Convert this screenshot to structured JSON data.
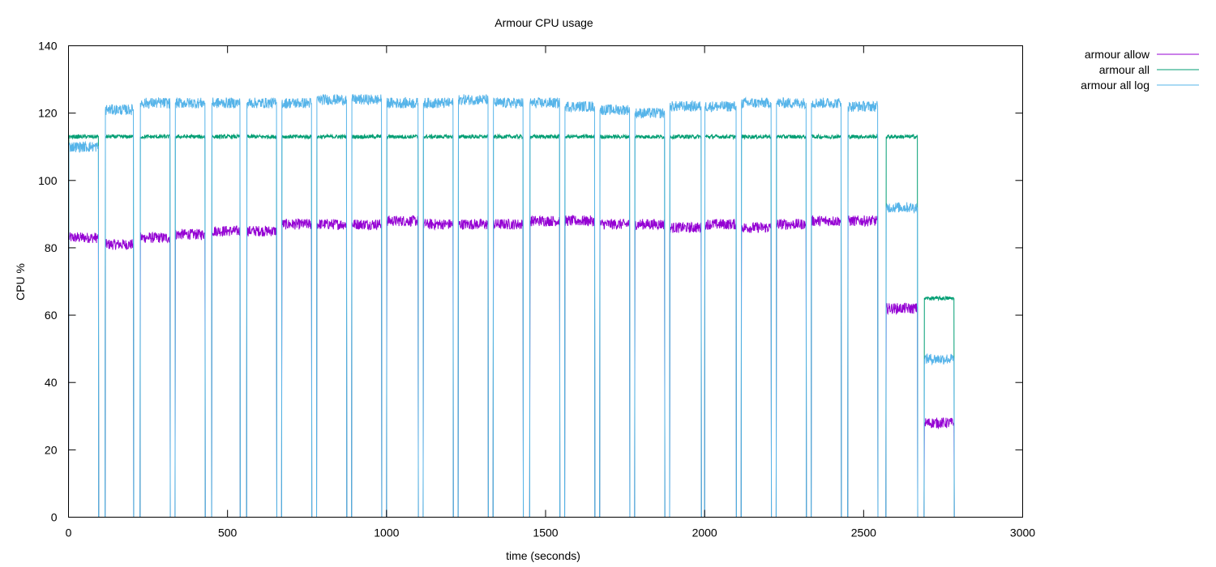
{
  "chart_data": {
    "type": "line",
    "title": "Armour CPU usage",
    "xlabel": "time (seconds)",
    "ylabel": "CPU %",
    "xlim": [
      0,
      3000
    ],
    "ylim": [
      0,
      140
    ],
    "xticks": [
      0,
      500,
      1000,
      1500,
      2000,
      2500,
      3000
    ],
    "yticks": [
      0,
      20,
      40,
      60,
      80,
      100,
      120,
      140
    ],
    "grid": false,
    "legend_position": "top-right, outside plot",
    "series": [
      {
        "name": "armour allow",
        "color": "#9400d3",
        "blocks": [
          [
            0,
            95,
            83
          ],
          [
            115,
            205,
            81
          ],
          [
            225,
            320,
            83
          ],
          [
            335,
            430,
            84
          ],
          [
            450,
            540,
            85
          ],
          [
            560,
            655,
            85
          ],
          [
            670,
            765,
            87
          ],
          [
            780,
            875,
            87
          ],
          [
            890,
            985,
            87
          ],
          [
            1000,
            1100,
            88
          ],
          [
            1115,
            1210,
            87
          ],
          [
            1225,
            1320,
            87
          ],
          [
            1335,
            1430,
            87
          ],
          [
            1450,
            1545,
            88
          ],
          [
            1560,
            1655,
            88
          ],
          [
            1670,
            1765,
            87
          ],
          [
            1780,
            1875,
            87
          ],
          [
            1890,
            1990,
            86
          ],
          [
            2000,
            2100,
            87
          ],
          [
            2115,
            2210,
            86
          ],
          [
            2225,
            2320,
            87
          ],
          [
            2335,
            2430,
            88
          ],
          [
            2450,
            2545,
            88
          ],
          [
            2570,
            2670,
            62
          ],
          [
            2690,
            2785,
            28
          ]
        ]
      },
      {
        "name": "armour all",
        "color": "#009e73",
        "blocks": [
          [
            0,
            95,
            113
          ],
          [
            115,
            205,
            113
          ],
          [
            225,
            320,
            113
          ],
          [
            335,
            430,
            113
          ],
          [
            450,
            540,
            113
          ],
          [
            560,
            655,
            113
          ],
          [
            670,
            765,
            113
          ],
          [
            780,
            875,
            113
          ],
          [
            890,
            985,
            113
          ],
          [
            1000,
            1100,
            113
          ],
          [
            1115,
            1210,
            113
          ],
          [
            1225,
            1320,
            113
          ],
          [
            1335,
            1430,
            113
          ],
          [
            1450,
            1545,
            113
          ],
          [
            1560,
            1655,
            113
          ],
          [
            1670,
            1765,
            113
          ],
          [
            1780,
            1875,
            113
          ],
          [
            1890,
            1990,
            113
          ],
          [
            2000,
            2100,
            113
          ],
          [
            2115,
            2210,
            113
          ],
          [
            2225,
            2320,
            113
          ],
          [
            2335,
            2430,
            113
          ],
          [
            2450,
            2545,
            113
          ],
          [
            2570,
            2670,
            113
          ],
          [
            2690,
            2785,
            65
          ]
        ]
      },
      {
        "name": "armour all log",
        "color": "#56b4e9",
        "blocks": [
          [
            0,
            95,
            110
          ],
          [
            115,
            205,
            121
          ],
          [
            225,
            320,
            123
          ],
          [
            335,
            430,
            123
          ],
          [
            450,
            540,
            123
          ],
          [
            560,
            655,
            123
          ],
          [
            670,
            765,
            123
          ],
          [
            780,
            875,
            124
          ],
          [
            890,
            985,
            124
          ],
          [
            1000,
            1100,
            123
          ],
          [
            1115,
            1210,
            123
          ],
          [
            1225,
            1320,
            124
          ],
          [
            1335,
            1430,
            123
          ],
          [
            1450,
            1545,
            123
          ],
          [
            1560,
            1655,
            122
          ],
          [
            1670,
            1765,
            121
          ],
          [
            1780,
            1875,
            120
          ],
          [
            1890,
            1990,
            122
          ],
          [
            2000,
            2100,
            122
          ],
          [
            2115,
            2210,
            123
          ],
          [
            2225,
            2320,
            123
          ],
          [
            2335,
            2430,
            123
          ],
          [
            2450,
            2545,
            122
          ],
          [
            2570,
            2670,
            92
          ],
          [
            2690,
            2785,
            47
          ]
        ]
      }
    ]
  }
}
